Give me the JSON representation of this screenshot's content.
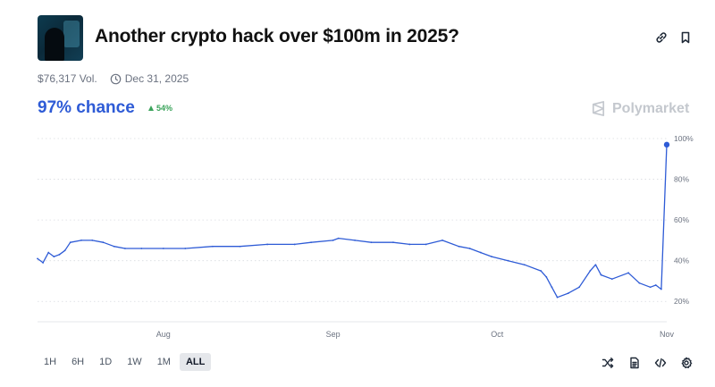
{
  "market": {
    "title": "Another crypto hack over $100m in 2025?",
    "volume": "$76,317 Vol.",
    "end_date": "Dec 31, 2025",
    "chance": "97% chance",
    "change": "54%",
    "brand": "Polymarket"
  },
  "icons": {
    "link": "link-icon",
    "bookmark": "bookmark-icon",
    "clock": "clock-icon",
    "shuffle": "shuffle-icon",
    "document": "document-icon",
    "embed": "code-icon",
    "settings": "gear-icon"
  },
  "colors": {
    "line": "#2e5bd6",
    "chance": "#2e5bd6",
    "up": "#3aa35a",
    "muted": "#6b7280"
  },
  "ranges": [
    "1H",
    "6H",
    "1D",
    "1W",
    "1M",
    "ALL"
  ],
  "active_range": "ALL",
  "chart_data": {
    "type": "line",
    "title": "",
    "xlabel": "",
    "ylabel": "",
    "x_ticks": [
      "Aug",
      "Sep",
      "Oct",
      "Nov"
    ],
    "y_ticks": [
      "100%",
      "80%",
      "60%",
      "40%",
      "20%"
    ],
    "ylim": [
      10,
      100
    ],
    "y_axis_position": "right",
    "grid": "horizontal dotted",
    "series": [
      {
        "x": [
          "Jul 9",
          "Jul 10",
          "Jul 11",
          "Jul 12",
          "Jul 13",
          "Jul 14",
          "Jul 15",
          "Jul 17",
          "Jul 19",
          "Jul 21",
          "Jul 23",
          "Jul 25",
          "Jul 28",
          "Aug 1",
          "Aug 5",
          "Aug 10",
          "Aug 15",
          "Aug 20",
          "Aug 25",
          "Aug 28",
          "Sep 1",
          "Sep 2",
          "Sep 5",
          "Sep 8",
          "Sep 12",
          "Sep 15",
          "Sep 18",
          "Sep 21",
          "Sep 24",
          "Sep 26",
          "Sep 28",
          "Sep 30",
          "Oct 3",
          "Oct 6",
          "Oct 9",
          "Oct 10",
          "Oct 11",
          "Oct 12",
          "Oct 14",
          "Oct 16",
          "Oct 18",
          "Oct 19",
          "Oct 20",
          "Oct 22",
          "Oct 25",
          "Oct 27",
          "Oct 29",
          "Oct 30",
          "Oct 31",
          "Nov 1"
        ],
        "y": [
          41,
          39,
          44,
          42,
          43,
          45,
          49,
          50,
          50,
          49,
          47,
          46,
          46,
          46,
          46,
          47,
          47,
          48,
          48,
          49,
          50,
          51,
          50,
          49,
          49,
          48,
          48,
          50,
          47,
          46,
          44,
          42,
          40,
          38,
          35,
          32,
          27,
          22,
          24,
          27,
          35,
          38,
          33,
          31,
          34,
          29,
          27,
          28,
          26,
          97
        ]
      }
    ]
  }
}
